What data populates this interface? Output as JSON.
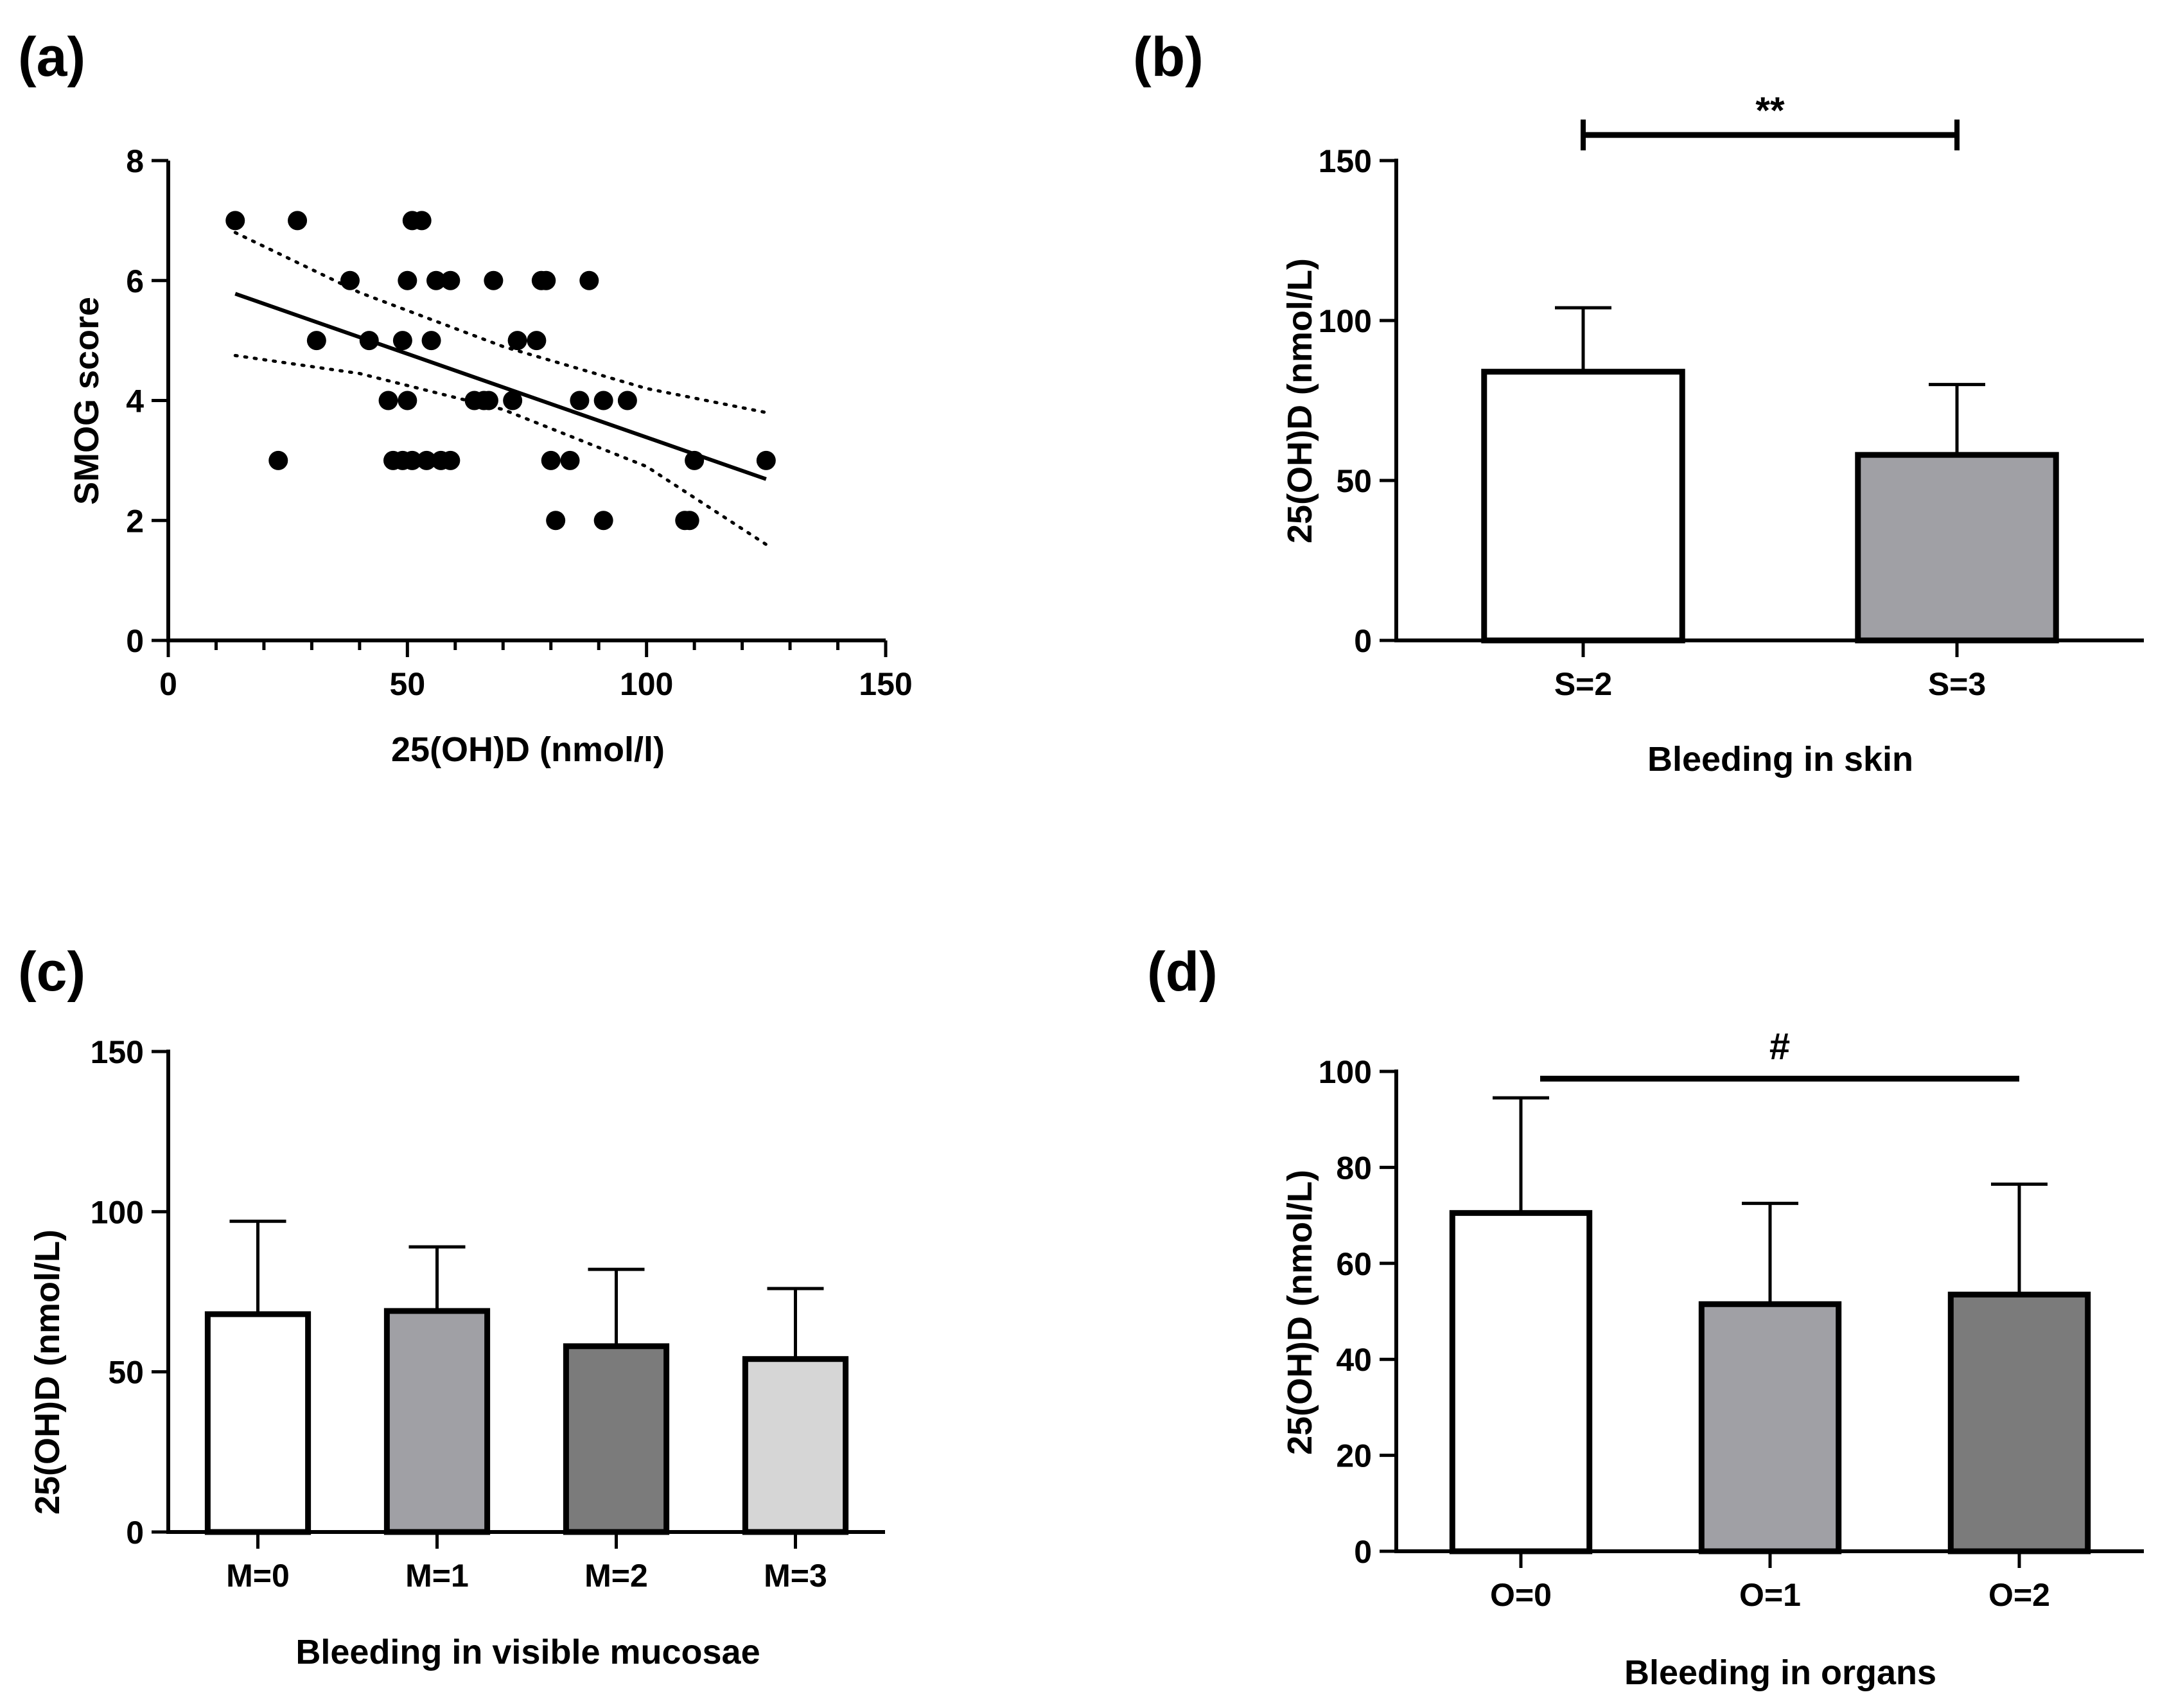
{
  "chart_data": [
    {
      "panel_label": "(a)",
      "type": "scatter",
      "xlabel": "25(OH)D (nmol/l)",
      "ylabel": "SMOG score",
      "xlim": [
        0,
        150
      ],
      "ylim": [
        0,
        8
      ],
      "x_ticks": [
        "0",
        "50",
        "100",
        "150"
      ],
      "y_ticks": [
        "0",
        "2",
        "4",
        "6",
        "8"
      ],
      "points": [
        {
          "x": 14,
          "y": 7
        },
        {
          "x": 27,
          "y": 7
        },
        {
          "x": 51,
          "y": 7
        },
        {
          "x": 53,
          "y": 7
        },
        {
          "x": 38,
          "y": 6
        },
        {
          "x": 50,
          "y": 6
        },
        {
          "x": 56,
          "y": 6
        },
        {
          "x": 59,
          "y": 6
        },
        {
          "x": 68,
          "y": 6
        },
        {
          "x": 78,
          "y": 6
        },
        {
          "x": 79,
          "y": 6
        },
        {
          "x": 88,
          "y": 6
        },
        {
          "x": 31,
          "y": 5
        },
        {
          "x": 42,
          "y": 5
        },
        {
          "x": 49,
          "y": 5
        },
        {
          "x": 55,
          "y": 5
        },
        {
          "x": 73,
          "y": 5
        },
        {
          "x": 77,
          "y": 5
        },
        {
          "x": 46,
          "y": 4
        },
        {
          "x": 50,
          "y": 4
        },
        {
          "x": 64,
          "y": 4
        },
        {
          "x": 66,
          "y": 4
        },
        {
          "x": 67,
          "y": 4
        },
        {
          "x": 72,
          "y": 4
        },
        {
          "x": 86,
          "y": 4
        },
        {
          "x": 91,
          "y": 4
        },
        {
          "x": 96,
          "y": 4
        },
        {
          "x": 23,
          "y": 3
        },
        {
          "x": 47,
          "y": 3
        },
        {
          "x": 49,
          "y": 3
        },
        {
          "x": 51,
          "y": 3
        },
        {
          "x": 54,
          "y": 3
        },
        {
          "x": 57,
          "y": 3
        },
        {
          "x": 59,
          "y": 3
        },
        {
          "x": 80,
          "y": 3
        },
        {
          "x": 84,
          "y": 3
        },
        {
          "x": 110,
          "y": 3
        },
        {
          "x": 125,
          "y": 3
        },
        {
          "x": 81,
          "y": 2
        },
        {
          "x": 91,
          "y": 2
        },
        {
          "x": 108,
          "y": 2
        },
        {
          "x": 109,
          "y": 2
        }
      ],
      "fit_line": {
        "x": [
          14,
          125
        ],
        "y": [
          5.78,
          2.69
        ]
      },
      "ci_upper": {
        "x": [
          14,
          40,
          70,
          100,
          125
        ],
        "y": [
          6.8,
          5.8,
          4.9,
          4.2,
          3.8
        ]
      },
      "ci_lower": {
        "x": [
          14,
          40,
          70,
          100,
          125
        ],
        "y": [
          4.75,
          4.45,
          3.85,
          2.9,
          1.6
        ]
      }
    },
    {
      "panel_label": "(b)",
      "type": "bar",
      "xlabel": "Bleeding in skin",
      "ylabel": "25(OH)D (nmol/L)",
      "ylim": [
        0,
        150
      ],
      "y_ticks": [
        "0",
        "50",
        "100",
        "150"
      ],
      "categories": [
        "S=2",
        "S=3"
      ],
      "values": [
        84,
        58
      ],
      "errors": [
        20,
        22
      ],
      "colors": [
        "#ffffff",
        "#a0a0a5"
      ],
      "significance": {
        "text": "**",
        "from": 0,
        "to": 1,
        "y": 158
      }
    },
    {
      "panel_label": "(c)",
      "type": "bar",
      "xlabel": "Bleeding in visible mucosae",
      "ylabel": "25(OH)D (nmol/L)",
      "ylim": [
        0,
        150
      ],
      "y_ticks": [
        "0",
        "50",
        "100",
        "150"
      ],
      "categories": [
        "M=0",
        "M=1",
        "M=2",
        "M=3"
      ],
      "values": [
        68,
        69,
        58,
        54
      ],
      "errors": [
        29,
        20,
        24,
        22
      ],
      "colors": [
        "#ffffff",
        "#a0a0a5",
        "#7b7b7b",
        "#d6d6d6"
      ]
    },
    {
      "panel_label": "(d)",
      "type": "bar",
      "xlabel": "Bleeding in organs",
      "ylabel": "25(OH)D (nmol/L)",
      "ylim": [
        0,
        100
      ],
      "y_ticks": [
        "0",
        "20",
        "40",
        "60",
        "80",
        "100"
      ],
      "categories": [
        "O=0",
        "O=1",
        "O=2"
      ],
      "values": [
        70.5,
        51.5,
        53.5
      ],
      "errors": [
        24,
        21,
        23
      ],
      "colors": [
        "#ffffff",
        "#a0a0a5",
        "#7b7b7b"
      ],
      "significance": {
        "text": "#",
        "from": 0,
        "to": 2,
        "y": 98.5
      }
    }
  ]
}
